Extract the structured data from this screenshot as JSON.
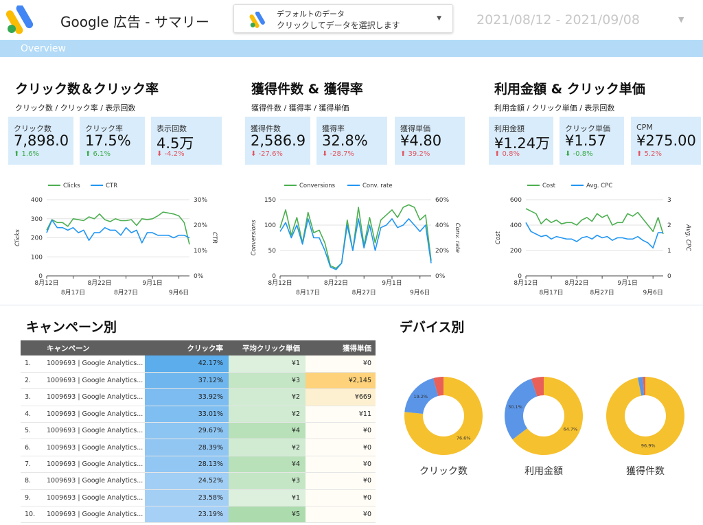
{
  "header": {
    "title": "Google 広告 - サマリー",
    "datasource_line1": "デフォルトのデータ",
    "datasource_line2": "クリックしてデータを選択します",
    "date_range": "2021/08/12 - 2021/09/08"
  },
  "colors": {
    "blue": "#4285f4",
    "green": "#34a853",
    "yellow": "#fbbc04",
    "red": "#ea4335",
    "chart_green": "#4caf50",
    "chart_blue": "#2196f3",
    "donut_yellow": "#f6c12e",
    "donut_blue": "#5b95e8",
    "donut_red": "#e86058"
  },
  "overview": {
    "label": "Overview"
  },
  "sections": [
    {
      "title": "クリック数＆クリック率",
      "subtitle": "クリック数 / クリック率 / 表示回数",
      "kpis": [
        {
          "label": "クリック数",
          "value": "7,898.0",
          "delta": "⬆ 1.6%",
          "dir": "up"
        },
        {
          "label": "クリック率",
          "value": "17.5%",
          "delta": "⬆ 6.1%",
          "dir": "up"
        },
        {
          "label": "表示回数",
          "value": "4.5万",
          "delta": "⬇ -4.2%",
          "dir": "down"
        }
      ]
    },
    {
      "title": "獲得件数 & 獲得率",
      "subtitle": "獲得件数 / 獲得率 / 獲得単価",
      "kpis": [
        {
          "label": "獲得件数",
          "value": "2,586.9",
          "delta": "⬇ -27.6%",
          "dir": "down"
        },
        {
          "label": "獲得率",
          "value": "32.8%",
          "delta": "⬇ -28.7%",
          "dir": "down"
        },
        {
          "label": "獲得単価",
          "value": "¥4.80",
          "delta": "⬆ 39.2%",
          "dir": "down"
        }
      ]
    },
    {
      "title": "利用金額 & クリック単価",
      "subtitle": "利用金額 / クリック単価 / 表示回数",
      "kpis": [
        {
          "label": "利用金額",
          "value": "¥1.24万",
          "delta": "⬆ 0.8%",
          "dir": "down"
        },
        {
          "label": "クリック単価",
          "value": "¥1.57",
          "delta": "⬇ -0.8%",
          "dir": "up"
        },
        {
          "label": "CPM",
          "value": "¥275.00",
          "delta": "⬆ 5.2%",
          "dir": "down"
        }
      ]
    }
  ],
  "chart_data": [
    {
      "type": "line",
      "x": [
        "8月12日",
        "8月13日",
        "8月14日",
        "8月15日",
        "8月16日",
        "8月17日",
        "8月18日",
        "8月19日",
        "8月20日",
        "8月21日",
        "8月22日",
        "8月23日",
        "8月24日",
        "8月25日",
        "8月26日",
        "8月27日",
        "8月28日",
        "8月29日",
        "8月30日",
        "8月31日",
        "9月1日",
        "9月2日",
        "9月3日",
        "9月4日",
        "9月5日",
        "9月6日",
        "9月7日",
        "9月8日"
      ],
      "xticks_top": [
        "8月12日",
        "8月22日",
        "9月1日"
      ],
      "xticks_bottom": [
        "8月17日",
        "8月27日",
        "9月6日"
      ],
      "series": [
        {
          "name": "Clicks",
          "axis": "left",
          "color": "#4caf50",
          "values": [
            240,
            295,
            280,
            280,
            260,
            300,
            295,
            290,
            310,
            300,
            325,
            295,
            285,
            300,
            290,
            290,
            295,
            265,
            300,
            295,
            300,
            315,
            335,
            330,
            325,
            315,
            280,
            165
          ]
        },
        {
          "name": "CTR",
          "axis": "right",
          "values": [
            17,
            22,
            19,
            19,
            18,
            19,
            17,
            18,
            14,
            17,
            17,
            19,
            18,
            18,
            16,
            19,
            17,
            18,
            13,
            17,
            17,
            16,
            16,
            16,
            15,
            16,
            16,
            15
          ]
        }
      ],
      "ylabel": "Clicks",
      "y2label": "CTR",
      "yticks": [
        "400",
        "300",
        "200",
        "100",
        "0"
      ],
      "ylim": [
        0,
        400
      ],
      "y2ticks": [
        "30%",
        "20%",
        "10%",
        "0%"
      ],
      "y2lim": [
        0,
        30
      ]
    },
    {
      "type": "line",
      "x": [
        "8月12日",
        "8月13日",
        "8月14日",
        "8月15日",
        "8月16日",
        "8月17日",
        "8月18日",
        "8月19日",
        "8月20日",
        "8月21日",
        "8月22日",
        "8月23日",
        "8月24日",
        "8月25日",
        "8月26日",
        "8月27日",
        "8月28日",
        "8月29日",
        "8月30日",
        "8月31日",
        "9月1日",
        "9月2日",
        "9月3日",
        "9月4日",
        "9月5日",
        "9月6日",
        "9月7日",
        "9月8日"
      ],
      "xticks_top": [
        "8月12日",
        "8月22日",
        "9月1日"
      ],
      "xticks_bottom": [
        "8月17日",
        "8月27日",
        "9月6日"
      ],
      "series": [
        {
          "name": "Conversions",
          "axis": "left",
          "values": [
            95,
            130,
            80,
            115,
            65,
            125,
            85,
            90,
            65,
            20,
            15,
            25,
            110,
            50,
            135,
            60,
            115,
            65,
            110,
            120,
            130,
            115,
            135,
            140,
            135,
            110,
            120,
            30
          ]
        },
        {
          "name": "Conv. rate",
          "axis": "right",
          "values": [
            35,
            42,
            30,
            40,
            25,
            45,
            30,
            30,
            20,
            7,
            5,
            10,
            40,
            20,
            45,
            22,
            40,
            20,
            38,
            40,
            45,
            38,
            40,
            45,
            40,
            35,
            40,
            10
          ]
        }
      ],
      "ylabel": "Conversions",
      "y2label": "Conv. rate",
      "yticks": [
        "150",
        "100",
        "50",
        "0"
      ],
      "ylim": [
        0,
        150
      ],
      "y2ticks": [
        "60%",
        "40%",
        "20%",
        "0%"
      ],
      "y2lim": [
        0,
        60
      ]
    },
    {
      "type": "line",
      "x": [
        "8月12日",
        "8月13日",
        "8月14日",
        "8月15日",
        "8月16日",
        "8月17日",
        "8月18日",
        "8月19日",
        "8月20日",
        "8月21日",
        "8月22日",
        "8月23日",
        "8月24日",
        "8月25日",
        "8月26日",
        "8月27日",
        "8月28日",
        "8月29日",
        "8月30日",
        "8月31日",
        "9月1日",
        "9月2日",
        "9月3日",
        "9月4日",
        "9月5日",
        "9月6日",
        "9月7日",
        "9月8日"
      ],
      "xticks_top": [
        "8月12日",
        "8月22日",
        "9月1日"
      ],
      "xticks_bottom": [
        "8月17日",
        "8月27日",
        "9月6日"
      ],
      "series": [
        {
          "name": "Cost",
          "axis": "left",
          "values": [
            530,
            510,
            490,
            410,
            450,
            420,
            440,
            410,
            420,
            420,
            400,
            440,
            460,
            430,
            490,
            460,
            480,
            400,
            420,
            420,
            490,
            470,
            500,
            450,
            400,
            350,
            460,
            330
          ]
        },
        {
          "name": "Avg. CPC",
          "axis": "right",
          "values": [
            2.1,
            1.75,
            1.65,
            1.55,
            1.6,
            1.45,
            1.55,
            1.5,
            1.45,
            1.45,
            1.35,
            1.5,
            1.55,
            1.45,
            1.6,
            1.5,
            1.55,
            1.4,
            1.5,
            1.5,
            1.45,
            1.45,
            1.55,
            1.4,
            1.3,
            1.1,
            1.7,
            1.7
          ]
        }
      ],
      "ylabel": "Cost",
      "y2label": "Avg. CPC",
      "yticks": [
        "600",
        "400",
        "200",
        "0"
      ],
      "ylim": [
        0,
        600
      ],
      "y2ticks": [
        "3",
        "2",
        "1",
        "0"
      ],
      "y2lim": [
        0,
        3
      ]
    },
    {
      "type": "pie",
      "title": "クリック数",
      "slices": [
        {
          "value": 76.6,
          "label": "76.6%",
          "color": "#f6c12e"
        },
        {
          "value": 19.2,
          "label": "19.2%",
          "color": "#5b95e8"
        },
        {
          "value": 4.2,
          "label": "",
          "color": "#e86058"
        }
      ]
    },
    {
      "type": "pie",
      "title": "利用金額",
      "slices": [
        {
          "value": 64.7,
          "label": "64.7%",
          "color": "#f6c12e"
        },
        {
          "value": 30.1,
          "label": "30.1%",
          "color": "#5b95e8"
        },
        {
          "value": 5.2,
          "label": "",
          "color": "#e86058"
        }
      ]
    },
    {
      "type": "pie",
      "title": "獲得件数",
      "slices": [
        {
          "value": 96.9,
          "label": "96.9%",
          "color": "#f6c12e"
        },
        {
          "value": 2.1,
          "label": "",
          "color": "#5b95e8"
        },
        {
          "value": 1.0,
          "label": "",
          "color": "#e86058"
        }
      ]
    },
    {
      "type": "table",
      "title": "キャンペーン別",
      "columns": [
        "キャンペーン",
        "クリック率",
        "平均クリック単価",
        "獲得単価"
      ],
      "rows": [
        {
          "no": "1.",
          "name": "1009693 | Google Analytics...",
          "ctr": "42.17%",
          "ctr_v": 42.17,
          "cpc": "¥1",
          "cpc_v": 1,
          "cpa": "¥0",
          "cpa_v": 0
        },
        {
          "no": "2.",
          "name": "1009693 | Google Analytics...",
          "ctr": "37.12%",
          "ctr_v": 37.12,
          "cpc": "¥3",
          "cpc_v": 3,
          "cpa": "¥2,145",
          "cpa_v": 2145
        },
        {
          "no": "3.",
          "name": "1009693 | Google Analytics...",
          "ctr": "33.92%",
          "ctr_v": 33.92,
          "cpc": "¥2",
          "cpc_v": 2,
          "cpa": "¥669",
          "cpa_v": 669
        },
        {
          "no": "4.",
          "name": "1009693 | Google Analytics...",
          "ctr": "33.01%",
          "ctr_v": 33.01,
          "cpc": "¥2",
          "cpc_v": 2,
          "cpa": "¥11",
          "cpa_v": 11
        },
        {
          "no": "5.",
          "name": "1009693 | Google Analytics...",
          "ctr": "29.67%",
          "ctr_v": 29.67,
          "cpc": "¥4",
          "cpc_v": 4,
          "cpa": "¥0",
          "cpa_v": 0
        },
        {
          "no": "6.",
          "name": "1009693 | Google Analytics...",
          "ctr": "28.39%",
          "ctr_v": 28.39,
          "cpc": "¥2",
          "cpc_v": 2,
          "cpa": "¥0",
          "cpa_v": 0
        },
        {
          "no": "7.",
          "name": "1009693 | Google Analytics...",
          "ctr": "28.13%",
          "ctr_v": 28.13,
          "cpc": "¥4",
          "cpc_v": 4,
          "cpa": "¥0",
          "cpa_v": 0
        },
        {
          "no": "8.",
          "name": "1009693 | Google Analytics...",
          "ctr": "24.52%",
          "ctr_v": 24.52,
          "cpc": "¥3",
          "cpc_v": 3,
          "cpa": "¥0",
          "cpa_v": 0
        },
        {
          "no": "9.",
          "name": "1009693 | Google Analytics...",
          "ctr": "23.58%",
          "ctr_v": 23.58,
          "cpc": "¥1",
          "cpc_v": 1,
          "cpa": "¥0",
          "cpa_v": 0
        },
        {
          "no": "10.",
          "name": "1009693 | Google Analytics...",
          "ctr": "23.19%",
          "ctr_v": 23.19,
          "cpc": "¥5",
          "cpc_v": 5,
          "cpa": "¥0",
          "cpa_v": 0
        }
      ]
    }
  ],
  "devices": {
    "title": "デバイス別"
  }
}
